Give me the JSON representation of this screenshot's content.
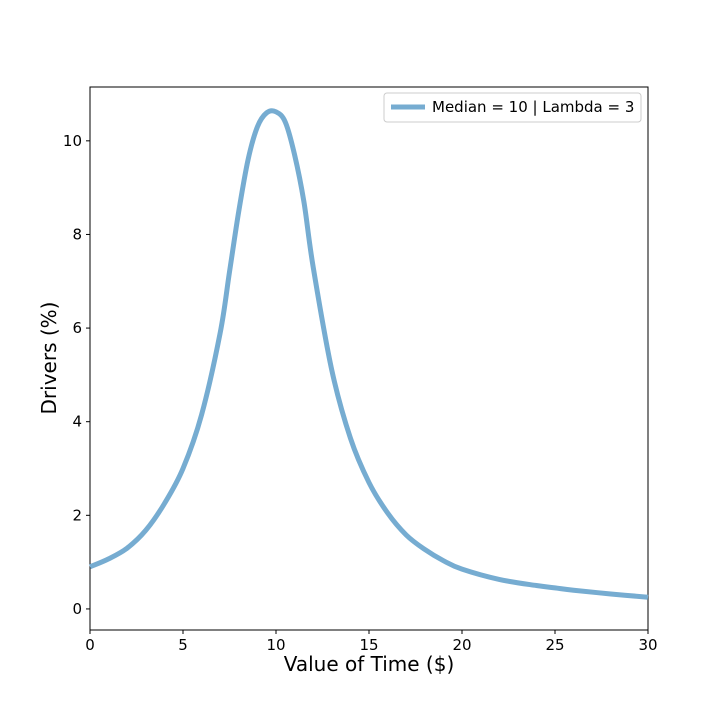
{
  "chart_data": {
    "type": "line",
    "title": "",
    "xlabel": "Value of Time ($)",
    "ylabel": "Drivers (%)",
    "xlim": [
      0,
      30
    ],
    "ylim": [
      -0.45,
      11.15
    ],
    "x_ticks": [
      0,
      5,
      10,
      15,
      20,
      25,
      30
    ],
    "y_ticks": [
      0,
      2,
      4,
      6,
      8,
      10
    ],
    "x_tick_labels": [
      "0",
      "5",
      "10",
      "15",
      "20",
      "25",
      "30"
    ],
    "y_tick_labels": [
      "0",
      "2",
      "4",
      "6",
      "8",
      "10"
    ],
    "grid": false,
    "legend_position": "top-right",
    "series": [
      {
        "name": "Median = 10 | Lambda = 3",
        "color": "#76acd1",
        "x": [
          0,
          1,
          2,
          3,
          4,
          5,
          6,
          7,
          7.5,
          8,
          8.5,
          9,
          9.5,
          10,
          10.5,
          11,
          11.5,
          12,
          13,
          14,
          15,
          16,
          17,
          18,
          19,
          20,
          22,
          24,
          25,
          26,
          28,
          30
        ],
        "y": [
          0.9,
          1.07,
          1.3,
          1.68,
          2.25,
          3.0,
          4.15,
          5.9,
          7.2,
          8.5,
          9.6,
          10.3,
          10.6,
          10.62,
          10.4,
          9.7,
          8.7,
          7.3,
          5.1,
          3.65,
          2.7,
          2.05,
          1.58,
          1.27,
          1.03,
          0.85,
          0.63,
          0.5,
          0.45,
          0.4,
          0.32,
          0.25
        ]
      }
    ]
  }
}
